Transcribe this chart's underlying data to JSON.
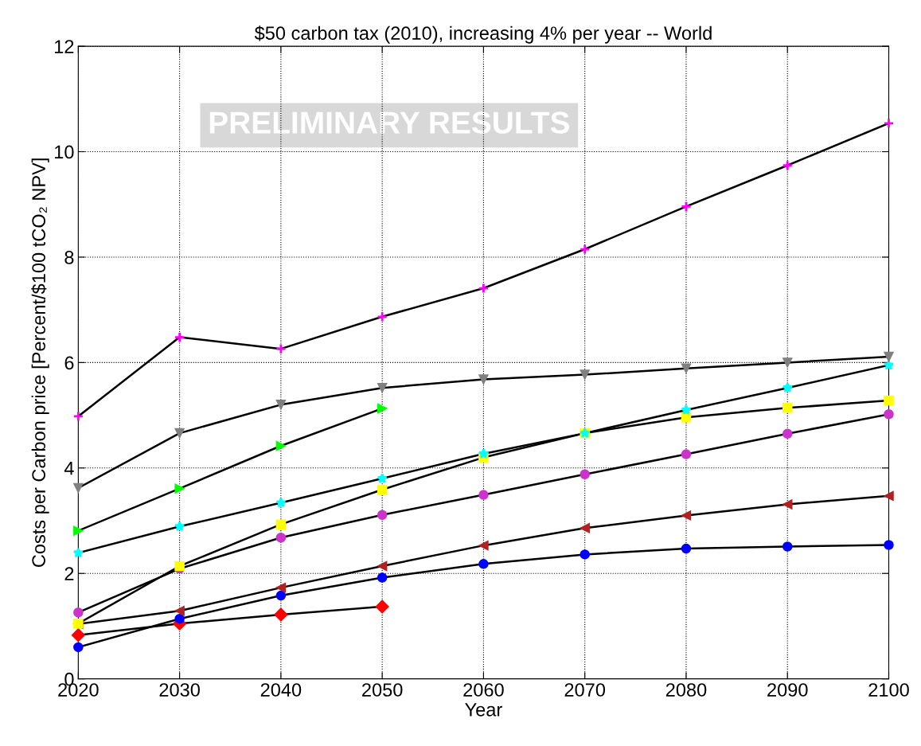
{
  "chart_data": {
    "type": "line",
    "title": "$50 carbon tax (2010), increasing 4% per year -- World",
    "xlabel": "Year",
    "ylabel": "Costs per Carbon price [Percent/$100 tCO₂ NPV]",
    "x": [
      2020,
      2030,
      2040,
      2050,
      2060,
      2070,
      2080,
      2090,
      2100
    ],
    "xlim": [
      2020,
      2100
    ],
    "xticks": [
      2020,
      2030,
      2040,
      2050,
      2060,
      2070,
      2080,
      2090,
      2100
    ],
    "ylim": [
      0,
      12
    ],
    "yticks": [
      0,
      2,
      4,
      6,
      8,
      10,
      12
    ],
    "grid": true,
    "line_style": "solid",
    "annotations": [
      "PRELIMINARY RESULTS"
    ],
    "series": [
      {
        "color": "#ff00ff",
        "marker": "plus",
        "values": [
          4.98,
          6.48,
          6.26,
          6.87,
          7.41,
          8.15,
          8.96,
          9.74,
          10.54
        ]
      },
      {
        "color": "#808080",
        "marker": "triangle-down",
        "values": [
          3.62,
          4.66,
          5.2,
          5.52,
          5.68,
          5.77,
          5.89,
          6.0,
          6.11
        ]
      },
      {
        "color": "#00ff00",
        "marker": "triangle-right",
        "values": [
          2.81,
          3.61,
          4.42,
          5.13,
          null,
          null,
          null,
          null,
          null
        ]
      },
      {
        "color": "#00ffff",
        "marker": "star",
        "values": [
          2.39,
          2.89,
          3.34,
          3.8,
          4.27,
          4.66,
          5.1,
          5.52,
          5.95
        ]
      },
      {
        "color": "#ffff00",
        "marker": "square",
        "values": [
          1.05,
          2.14,
          2.93,
          3.59,
          4.2,
          4.66,
          4.96,
          5.14,
          5.28
        ]
      },
      {
        "color": "#cc33cc",
        "marker": "circle",
        "values": [
          1.26,
          2.09,
          2.68,
          3.11,
          3.49,
          3.88,
          4.26,
          4.65,
          5.02
        ]
      },
      {
        "color": "#b22222",
        "marker": "triangle-left",
        "values": [
          1.04,
          1.29,
          1.73,
          2.14,
          2.53,
          2.86,
          3.1,
          3.31,
          3.47
        ]
      },
      {
        "color": "#0000ff",
        "marker": "circle",
        "values": [
          0.6,
          1.14,
          1.58,
          1.92,
          2.18,
          2.36,
          2.47,
          2.51,
          2.54
        ]
      },
      {
        "color": "#ff0000",
        "marker": "diamond",
        "values": [
          0.83,
          1.05,
          1.22,
          1.37,
          null,
          null,
          null,
          null,
          null
        ]
      }
    ]
  }
}
